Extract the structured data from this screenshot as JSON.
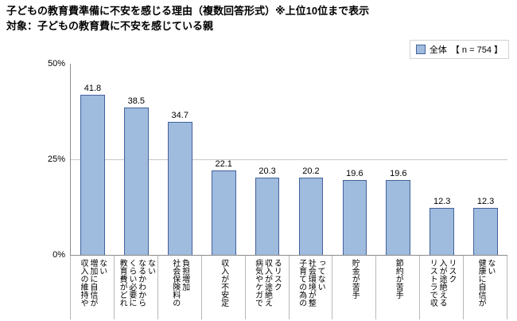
{
  "title_line1": "子どもの教育費準備に不安を感じる理由（複数回答形式）※上位10位まで表示",
  "title_line2": "対象：子どもの教育費に不安を感じている親",
  "legend": {
    "label": "全体",
    "n_label": "【 n = 754 】",
    "swatch_fill": "#9fbbdd",
    "swatch_border": "#44619c"
  },
  "chart_data": {
    "type": "bar",
    "title": "子どもの教育費準備に不安を感じる理由（複数回答形式）※上位10位まで表示",
    "subtitle": "対象：子どもの教育費に不安を感じている親",
    "categories": [
      "収入の維持や増加に自信がない",
      "教育費がどれくらい必要になるかわからない",
      "社会保険料の負担増加",
      "収入が不安定",
      "病気やケガで収入が途絶えるリスク",
      "子育ての為の社会環境が整ってない",
      "貯金が苦手",
      "節約が苦手",
      "リストラで収入が途絶えるリスク",
      "健康に自信がない"
    ],
    "values": [
      41.8,
      38.5,
      34.7,
      22.1,
      20.3,
      20.2,
      19.6,
      19.6,
      12.3,
      12.3
    ],
    "series_name": "全体",
    "n": 754,
    "ylim": [
      0,
      50
    ],
    "yticks": [
      "0%",
      "25%",
      "50%"
    ],
    "grid": true,
    "legend_position": "top-right",
    "bar_fill": "#9fbbdd",
    "bar_border": "#44619c"
  }
}
